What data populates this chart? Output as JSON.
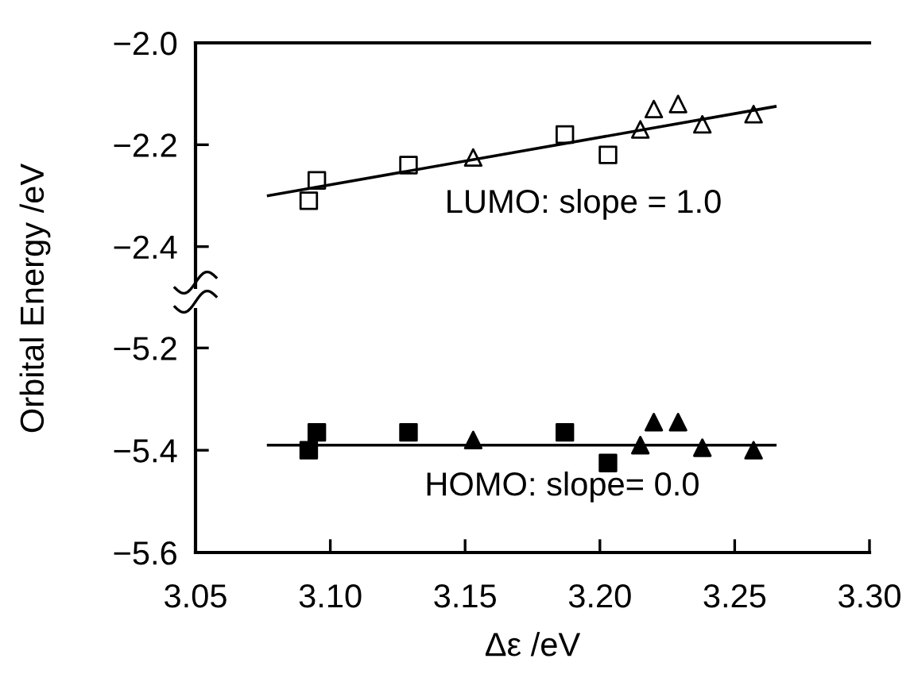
{
  "chart_data": [
    {
      "type": "scatter",
      "ylabel": "Orbital Energy /eV",
      "xlim": [
        3.05,
        3.3
      ],
      "ylim": [
        -2.48,
        -2.0
      ],
      "yticks": [
        {
          "value": -2.0,
          "label": "−2.0"
        },
        {
          "value": -2.2,
          "label": "−2.2"
        },
        {
          "value": -2.4,
          "label": "−2.4"
        }
      ],
      "tick_labels": "y",
      "grid": false,
      "legend": false,
      "annotations": [
        "LUMO: slope = 1.0"
      ],
      "series": [
        {
          "marker": "square",
          "color": "#000000",
          "x": [
            3.092,
            3.095,
            3.129,
            3.187,
            3.203
          ],
          "values": [
            -2.31,
            -2.27,
            -2.24,
            -2.18,
            -2.22
          ]
        },
        {
          "marker": "triangle",
          "color": "#000000",
          "x": [
            3.153,
            3.215,
            3.22,
            3.229,
            3.238,
            3.257
          ],
          "values": [
            -2.225,
            -2.17,
            -2.13,
            -2.12,
            -2.16,
            -2.14
          ]
        },
        {
          "type": "line",
          "marker": "none",
          "color": "#000000",
          "x": [
            3.077,
            3.265
          ],
          "values": [
            -2.3,
            -2.125
          ]
        }
      ]
    },
    {
      "type": "scatter",
      "xlabel": "Δε /eV",
      "xlim": [
        3.05,
        3.3
      ],
      "xticks": [
        {
          "value": 3.05,
          "label": "3.05"
        },
        {
          "value": 3.1,
          "label": "3.10"
        },
        {
          "value": 3.15,
          "label": "3.15"
        },
        {
          "value": 3.2,
          "label": "3.20"
        },
        {
          "value": 3.25,
          "label": "3.25"
        },
        {
          "value": 3.3,
          "label": "3.30"
        }
      ],
      "ylim": [
        -5.6,
        -5.125
      ],
      "yticks": [
        {
          "value": -5.2,
          "label": "−5.2"
        },
        {
          "value": -5.4,
          "label": "−5.4"
        },
        {
          "value": -5.6,
          "label": "−5.6"
        }
      ],
      "grid": false,
      "legend": false,
      "annotations": [
        "HOMO: slope= 0.0"
      ],
      "series": [
        {
          "marker": "square",
          "color": "#000000",
          "x": [
            3.092,
            3.095,
            3.129,
            3.187,
            3.203
          ],
          "values": [
            -5.4,
            -5.365,
            -5.365,
            -5.365,
            -5.425
          ]
        },
        {
          "marker": "triangle",
          "color": "#000000",
          "x": [
            3.153,
            3.215,
            3.22,
            3.229,
            3.238,
            3.257
          ],
          "values": [
            -5.38,
            -5.39,
            -5.345,
            -5.345,
            -5.395,
            -5.4
          ]
        },
        {
          "type": "line",
          "marker": "none",
          "color": "#000000",
          "x": [
            3.077,
            3.265
          ],
          "values": [
            -5.39,
            -5.39
          ]
        }
      ]
    }
  ]
}
